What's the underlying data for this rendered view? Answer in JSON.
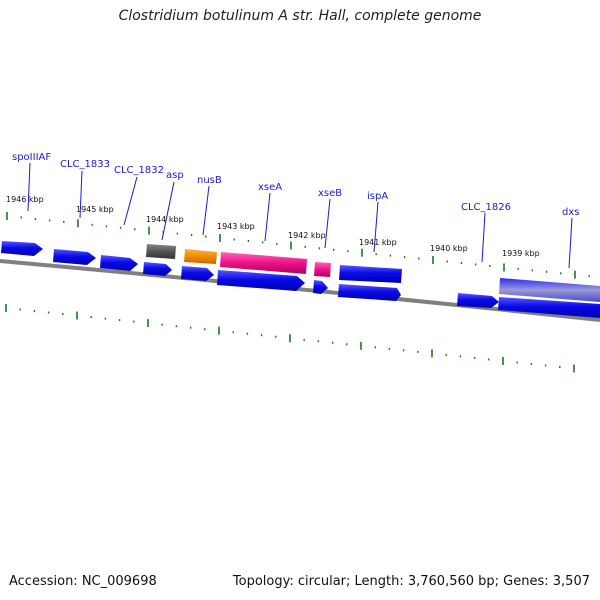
{
  "title": "Clostridium botulinum A str. Hall, complete genome",
  "footer": {
    "accession": "Accession: NC_009698",
    "stats": "Topology: circular; Length: 3,760,560 bp; Genes: 3,507"
  },
  "kbp_labels": [
    "1946 kbp",
    "1945 kbp",
    "1944 kbp",
    "1943 kbp",
    "1942 kbp",
    "1941 kbp",
    "1940 kbp",
    "1939 kbp"
  ],
  "gene_labels": [
    "spoIIIAF",
    "CLC_1833",
    "CLC_1832",
    "asp",
    "nusB",
    "xseA",
    "xseB",
    "ispA",
    "CLC_1826",
    "dxs"
  ],
  "colors": {
    "cds": "#0a0ae0",
    "cds_light": "#6a6aff",
    "grey_feature": "#555555",
    "orange_feature": "#f08c00",
    "pink_feature": "#ee1188",
    "tick": "#1a7a1a",
    "backbone": "#808080"
  }
}
